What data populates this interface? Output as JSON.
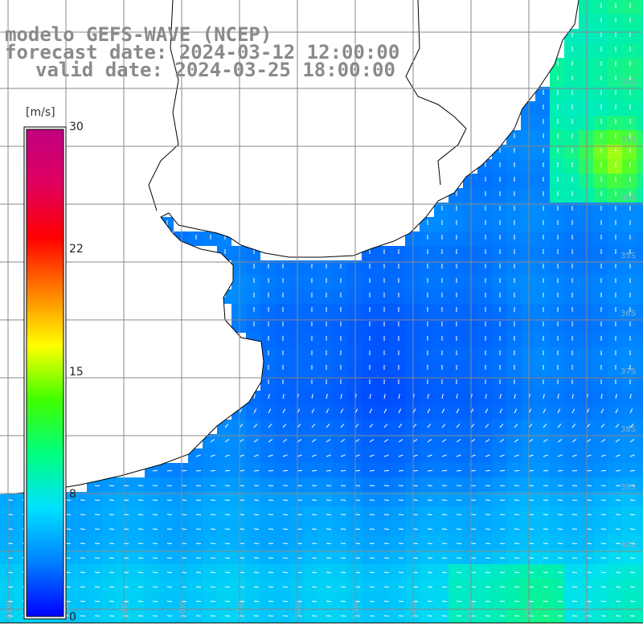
{
  "title": {
    "model": "modelo GEFS-WAVE (NCEP)",
    "forecast": "forecast date: 2024-03-12 12:00:00",
    "valid": "valid date: 2024-03-25 18:00:00"
  },
  "colorbar": {
    "unit": "[m/s]",
    "ticks": [
      {
        "label": "30",
        "value": 30
      },
      {
        "label": "22",
        "value": 22
      },
      {
        "label": "15",
        "value": 15
      },
      {
        "label": "8",
        "value": 8
      },
      {
        "label": "0",
        "value": 0
      }
    ],
    "range": [
      0,
      30
    ],
    "colors": [
      "#0000ff",
      "#0080ff",
      "#00e0ff",
      "#00ff80",
      "#40ff00",
      "#ffff00",
      "#ff8000",
      "#ff0000",
      "#e00060",
      "#c00080"
    ]
  },
  "map": {
    "ocean_low": "#1060ff",
    "ocean_mid": "#00c8ff",
    "land_color": "#ffffff",
    "grid_color": "#888888",
    "arrow_color": "#ffffff",
    "lat_labels": [
      "32S",
      "33S",
      "34S",
      "35S",
      "36S",
      "37S",
      "38S",
      "39S",
      "40S"
    ],
    "lon_labels": [
      "61W",
      "60W",
      "59W",
      "58W",
      "57W",
      "56W",
      "55W",
      "54W",
      "53W",
      "52W",
      "51W"
    ]
  }
}
